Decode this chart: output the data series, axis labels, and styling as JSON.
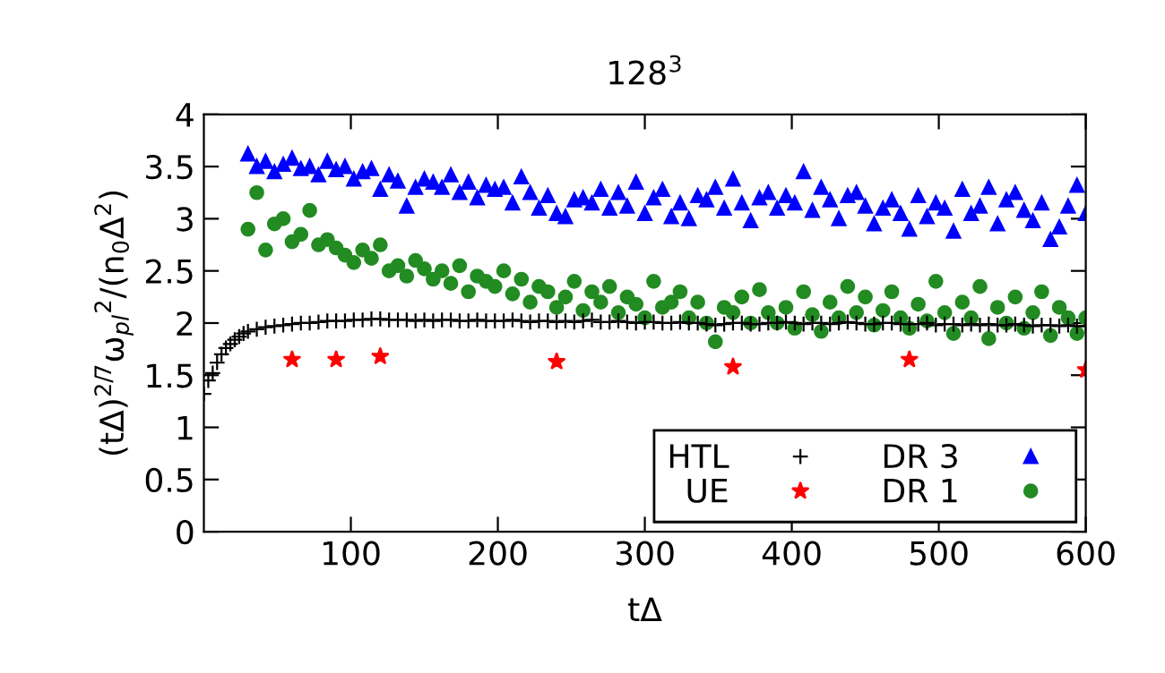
{
  "chart_data": {
    "type": "scatter",
    "title": "128$^{3}$",
    "xlabel": "tΔ",
    "ylabel": "(tΔ)$^{2/7}$ω$_{pl}$$^{2}$/(n$_{0}$Δ$^{2}$)",
    "xlim": [
      0,
      600
    ],
    "xticks": [
      100,
      200,
      300,
      400,
      500,
      600
    ],
    "ylim": [
      0,
      4
    ],
    "yticks": [
      0,
      0.5,
      1,
      1.5,
      2,
      2.5,
      3,
      3.5,
      4
    ],
    "grid": false,
    "legend": "bottom right",
    "series": [
      {
        "name": "HTL",
        "color": "#000000",
        "marker": "cross",
        "x": [
          0,
          3,
          6,
          9,
          12,
          15,
          18,
          21,
          24,
          27,
          30,
          36,
          42,
          48,
          54,
          60,
          66,
          72,
          78,
          84,
          90,
          96,
          102,
          108,
          114,
          120,
          126,
          132,
          138,
          144,
          150,
          156,
          162,
          168,
          174,
          180,
          186,
          192,
          198,
          204,
          210,
          216,
          222,
          228,
          234,
          240,
          246,
          252,
          258,
          264,
          270,
          276,
          282,
          288,
          294,
          300,
          306,
          312,
          318,
          324,
          330,
          336,
          342,
          348,
          354,
          360,
          366,
          372,
          378,
          384,
          390,
          396,
          402,
          408,
          414,
          420,
          426,
          432,
          438,
          444,
          450,
          456,
          462,
          468,
          474,
          480,
          486,
          492,
          498,
          504,
          510,
          516,
          522,
          528,
          534,
          540,
          546,
          552,
          558,
          564,
          570,
          576,
          582,
          588,
          594,
          600
        ],
        "values": [
          1.32,
          1.45,
          1.52,
          1.62,
          1.7,
          1.76,
          1.8,
          1.84,
          1.87,
          1.9,
          1.92,
          1.94,
          1.96,
          1.97,
          1.98,
          1.99,
          2.0,
          2.0,
          2.01,
          2.02,
          2.02,
          2.02,
          2.03,
          2.03,
          2.04,
          2.04,
          2.03,
          2.03,
          2.03,
          2.02,
          2.03,
          2.02,
          2.03,
          2.03,
          2.02,
          2.02,
          2.03,
          2.02,
          2.02,
          2.02,
          2.03,
          2.02,
          2.01,
          2.02,
          2.02,
          2.01,
          2.02,
          2.01,
          2.02,
          2.03,
          2.01,
          2.01,
          2.02,
          2.01,
          2.0,
          2.01,
          2.01,
          2.0,
          2.0,
          2.01,
          2.0,
          2.0,
          1.99,
          1.98,
          1.99,
          2.0,
          2.0,
          1.99,
          1.99,
          2.0,
          2.0,
          2.01,
          2.0,
          1.99,
          2.0,
          2.0,
          1.99,
          2.0,
          2.01,
          2.0,
          1.99,
          1.99,
          2.0,
          2.0,
          1.99,
          1.99,
          1.99,
          2.0,
          1.98,
          1.99,
          1.99,
          1.98,
          1.99,
          1.98,
          1.99,
          1.98,
          1.98,
          1.99,
          1.98,
          1.97,
          1.98,
          1.98,
          1.97,
          1.98,
          1.97,
          1.97
        ]
      },
      {
        "name": "UE",
        "color": "#ff0000",
        "marker": "star",
        "x": [
          60,
          90,
          120,
          240,
          360,
          480,
          600
        ],
        "values": [
          1.65,
          1.65,
          1.68,
          1.63,
          1.58,
          1.65,
          1.55
        ]
      },
      {
        "name": "DR 3",
        "color": "#0000ff",
        "marker": "triangle",
        "x": [
          30,
          36,
          42,
          48,
          54,
          60,
          66,
          72,
          78,
          84,
          90,
          96,
          102,
          108,
          114,
          120,
          126,
          132,
          138,
          144,
          150,
          156,
          162,
          168,
          174,
          180,
          186,
          192,
          198,
          204,
          210,
          216,
          222,
          228,
          234,
          240,
          246,
          252,
          258,
          264,
          270,
          276,
          282,
          288,
          294,
          300,
          306,
          312,
          318,
          324,
          330,
          336,
          342,
          348,
          354,
          360,
          366,
          372,
          378,
          384,
          390,
          396,
          402,
          408,
          414,
          420,
          426,
          432,
          438,
          444,
          450,
          456,
          462,
          468,
          474,
          480,
          486,
          492,
          498,
          504,
          510,
          516,
          522,
          528,
          534,
          540,
          546,
          552,
          558,
          564,
          570,
          576,
          582,
          588,
          594,
          600
        ],
        "values": [
          3.62,
          3.5,
          3.55,
          3.45,
          3.52,
          3.58,
          3.48,
          3.5,
          3.42,
          3.55,
          3.47,
          3.5,
          3.38,
          3.45,
          3.48,
          3.28,
          3.42,
          3.36,
          3.12,
          3.3,
          3.38,
          3.35,
          3.3,
          3.42,
          3.25,
          3.35,
          3.2,
          3.32,
          3.28,
          3.3,
          3.15,
          3.4,
          3.25,
          3.1,
          3.22,
          3.05,
          3.02,
          3.18,
          3.2,
          3.15,
          3.28,
          3.1,
          3.25,
          3.12,
          3.35,
          3.05,
          3.2,
          3.28,
          3.02,
          3.15,
          3.0,
          3.22,
          3.18,
          3.3,
          3.1,
          3.38,
          3.15,
          2.98,
          3.2,
          3.25,
          3.1,
          3.22,
          3.15,
          3.45,
          3.08,
          3.3,
          3.18,
          3.0,
          3.22,
          3.25,
          3.12,
          2.95,
          3.1,
          3.18,
          3.05,
          2.9,
          3.22,
          3.02,
          3.15,
          3.1,
          2.88,
          3.28,
          3.05,
          3.12,
          3.3,
          2.95,
          3.18,
          3.25,
          3.08,
          2.98,
          3.15,
          2.8,
          2.92,
          3.12,
          3.32,
          3.05
        ]
      },
      {
        "name": "DR 1",
        "color": "#228b22",
        "marker": "circle",
        "x": [
          30,
          36,
          42,
          48,
          54,
          60,
          66,
          72,
          78,
          84,
          90,
          96,
          102,
          108,
          114,
          120,
          126,
          132,
          138,
          144,
          150,
          156,
          162,
          168,
          174,
          180,
          186,
          192,
          198,
          204,
          210,
          216,
          222,
          228,
          234,
          240,
          246,
          252,
          258,
          264,
          270,
          276,
          282,
          288,
          294,
          300,
          306,
          312,
          318,
          324,
          330,
          336,
          342,
          348,
          354,
          360,
          366,
          372,
          378,
          384,
          390,
          396,
          402,
          408,
          414,
          420,
          426,
          432,
          438,
          444,
          450,
          456,
          462,
          468,
          474,
          480,
          486,
          492,
          498,
          504,
          510,
          516,
          522,
          528,
          534,
          540,
          546,
          552,
          558,
          564,
          570,
          576,
          582,
          588,
          594,
          600
        ],
        "values": [
          2.9,
          3.25,
          2.7,
          2.95,
          3.0,
          2.78,
          2.85,
          3.08,
          2.75,
          2.8,
          2.72,
          2.65,
          2.58,
          2.7,
          2.62,
          2.75,
          2.5,
          2.55,
          2.45,
          2.6,
          2.52,
          2.42,
          2.5,
          2.38,
          2.55,
          2.3,
          2.45,
          2.4,
          2.35,
          2.5,
          2.28,
          2.42,
          2.2,
          2.35,
          2.3,
          2.15,
          2.25,
          2.4,
          2.12,
          2.3,
          2.2,
          2.35,
          2.1,
          2.25,
          2.18,
          2.05,
          2.4,
          2.15,
          2.2,
          2.3,
          2.05,
          2.2,
          2.0,
          1.82,
          2.15,
          2.1,
          2.25,
          2.0,
          2.32,
          2.1,
          2.0,
          2.15,
          1.95,
          2.3,
          2.08,
          1.92,
          2.2,
          2.05,
          2.35,
          2.1,
          2.25,
          1.98,
          2.12,
          2.3,
          2.05,
          1.95,
          2.18,
          2.02,
          2.4,
          2.1,
          1.9,
          2.2,
          2.05,
          2.35,
          1.85,
          2.15,
          2.0,
          2.25,
          1.95,
          2.1,
          2.3,
          1.88,
          2.15,
          2.05,
          1.9,
          2.05
        ]
      }
    ]
  }
}
